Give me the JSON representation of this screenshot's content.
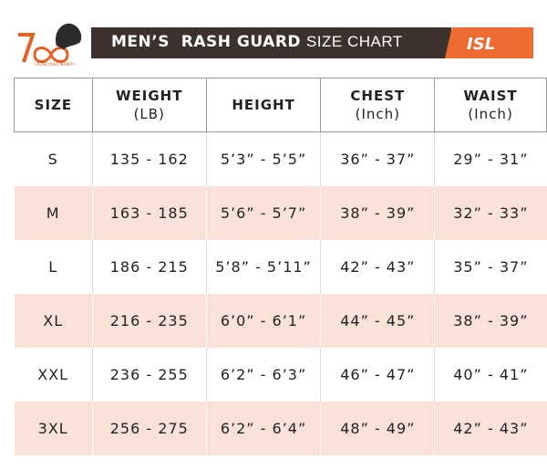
{
  "header": {
    "title_bold": "MEN’S  RASH GUARD",
    "title_light": "SIZE CHART",
    "left_logo_tagline": "CROSS OVER INFINITY",
    "right_logo": "ISL"
  },
  "table": {
    "columns": [
      {
        "label": "SIZE"
      },
      {
        "label": "WEIGHT",
        "unit": "(LB)"
      },
      {
        "label": "HEIGHT"
      },
      {
        "label": "CHEST",
        "unit": "(Inch)"
      },
      {
        "label": "WAIST",
        "unit": "(Inch)"
      }
    ],
    "rows": [
      [
        "S",
        "135 - 162",
        "5’3” - 5’5”",
        "36” - 37”",
        "29” - 31”"
      ],
      [
        "M",
        "163 - 185",
        "5’6” - 5’7”",
        "38” - 39”",
        "32” - 33”"
      ],
      [
        "L",
        "186 - 215",
        "5’8” - 5’11”",
        "42” - 43”",
        "35” - 37”"
      ],
      [
        "XL",
        "216 - 235",
        "6’0” - 6’1”",
        "44” - 45”",
        "38” - 39”"
      ],
      [
        "XXL",
        "236 - 255",
        "6’2” - 6’3”",
        "46” - 47”",
        "40” - 41”"
      ],
      [
        "3XL",
        "256 - 275",
        "6’2” - 6’4”",
        "48” - 49”",
        "42” - 43”"
      ]
    ]
  }
}
